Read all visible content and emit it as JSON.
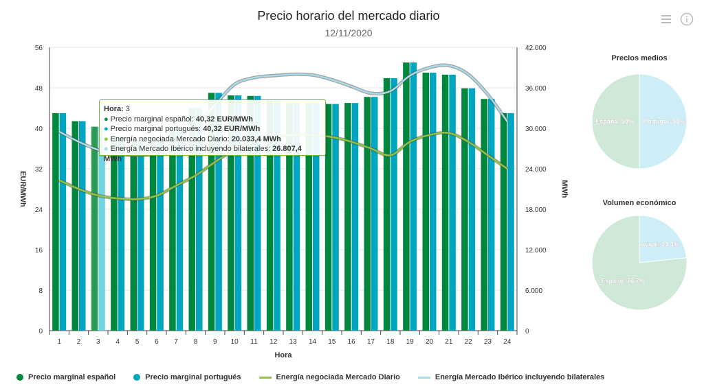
{
  "title": "Precio horario del mercado diario",
  "subtitle": "12/11/2020",
  "toolbar": {
    "menu_icon": "hamburger-menu-icon",
    "info_icon": "info-icon"
  },
  "colors": {
    "spanish_price": "#00873e",
    "portuguese_price": "#00a6bf",
    "energy_daily": "#8cc63f",
    "energy_iberian": "#a9dce8",
    "pie_spain": "#cfe8d7",
    "pie_portugal": "#cdeef7"
  },
  "tooltip": {
    "hour_label": "Hora:",
    "hour_value": "3",
    "rows": [
      {
        "label": "Precio marginal español:",
        "value": "40,32 EUR/MWh",
        "color": "#00873e"
      },
      {
        "label": "Precio marginal portugués:",
        "value": "40,32 EUR/MWh",
        "color": "#00a6bf"
      },
      {
        "label": "Energía negociada Mercado Diario:",
        "value": "20.033,4 MWh",
        "color": "#8cc63f"
      },
      {
        "label": "Energía Mercado Ibérico incluyendo bilaterales:",
        "value": "26.807,4 MWh",
        "color": "#a9dce8"
      }
    ]
  },
  "legend": [
    {
      "label": "Precio marginal español",
      "kind": "dot",
      "color": "#00873e"
    },
    {
      "label": "Precio marginal portugués",
      "kind": "dot",
      "color": "#00a6bf"
    },
    {
      "label": "Energía negociada Mercado Diario",
      "kind": "line",
      "color": "#8cc63f"
    },
    {
      "label": "Energía Mercado Ibérico incluyendo bilaterales",
      "kind": "line",
      "color": "#a9dce8"
    }
  ],
  "chart_data": [
    {
      "type": "bar",
      "title": "Precio horario del mercado diario",
      "subtitle": "12/11/2020",
      "xlabel": "Hora",
      "ylabel": "EUR/MWh",
      "ylabel_right": "MWh",
      "categories": [
        "1",
        "2",
        "3",
        "4",
        "5",
        "6",
        "7",
        "8",
        "9",
        "10",
        "11",
        "12",
        "13",
        "14",
        "15",
        "16",
        "17",
        "18",
        "19",
        "20",
        "21",
        "22",
        "23",
        "24"
      ],
      "ylim": [
        0,
        56
      ],
      "yticks": [
        "0",
        "8",
        "16",
        "24",
        "32",
        "40",
        "48",
        "56"
      ],
      "ylim_right": [
        0,
        42000
      ],
      "yticks_right": [
        "0",
        "6.000",
        "12.000",
        "18.000",
        "24.000",
        "30.000",
        "36.000",
        "42.000"
      ],
      "highlighted_category": "3",
      "series": [
        {
          "name": "Precio marginal español",
          "type": "bar",
          "axis": "left",
          "values": [
            43.0,
            41.4,
            40.32,
            38.5,
            37.5,
            38.0,
            40.0,
            44.0,
            47.0,
            46.5,
            46.4,
            45.5,
            45.0,
            45.0,
            44.8,
            45.0,
            46.2,
            49.9,
            53.0,
            51.0,
            50.6,
            47.9,
            45.8,
            43.0
          ]
        },
        {
          "name": "Precio marginal portugués",
          "type": "bar",
          "axis": "left",
          "values": [
            43.0,
            41.4,
            40.32,
            38.5,
            37.5,
            38.0,
            40.0,
            44.0,
            47.0,
            46.5,
            46.4,
            45.5,
            45.0,
            45.0,
            44.8,
            45.0,
            46.2,
            49.9,
            53.0,
            51.0,
            50.6,
            47.9,
            45.8,
            43.0
          ]
        },
        {
          "name": "Energía negociada Mercado Diario",
          "type": "line",
          "axis": "right",
          "values": [
            22300,
            21000,
            20033.4,
            19600,
            19500,
            20000,
            21500,
            23000,
            25000,
            26800,
            28000,
            28700,
            29000,
            29000,
            28700,
            28000,
            27000,
            26000,
            28000,
            29000,
            29300,
            28000,
            26000,
            24000
          ]
        },
        {
          "name": "Energía Mercado Ibérico incluyendo bilaterales",
          "type": "line",
          "axis": "right",
          "values": [
            29500,
            28000,
            26807.4,
            26200,
            26000,
            26300,
            28000,
            30500,
            33500,
            36500,
            37500,
            37800,
            38000,
            37900,
            37200,
            36200,
            35200,
            35500,
            37800,
            39000,
            39300,
            38000,
            35000,
            31000
          ]
        }
      ]
    },
    {
      "type": "pie",
      "title": "Precios medios",
      "slices": [
        {
          "name": "Portugal",
          "label": "Portugal: 50%",
          "value": 50,
          "color": "#cdeef7"
        },
        {
          "name": "España",
          "label": "España: 50%",
          "value": 50,
          "color": "#cfe8d7"
        }
      ]
    },
    {
      "type": "pie",
      "title": "Volumen económico",
      "slices": [
        {
          "name": "Portugal",
          "label": "Portugal: 23.3%",
          "value": 23.3,
          "color": "#cdeef7"
        },
        {
          "name": "España",
          "label": "España: 76.7%",
          "value": 76.7,
          "color": "#cfe8d7"
        }
      ]
    }
  ]
}
